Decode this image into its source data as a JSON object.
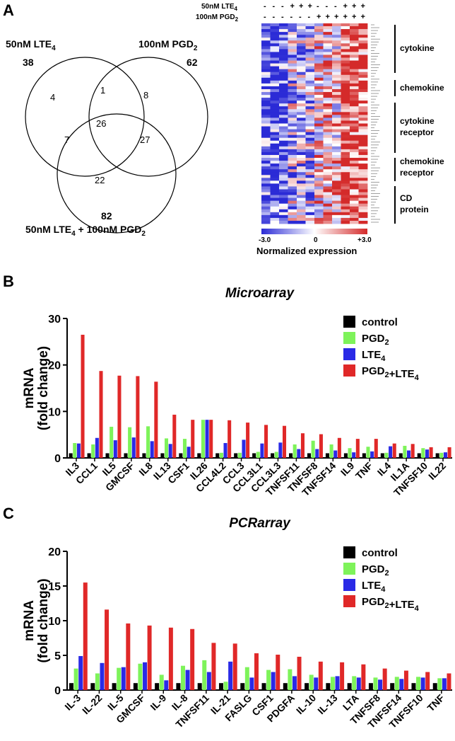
{
  "panels": {
    "a": "A",
    "b": "B",
    "c": "C"
  },
  "venn": {
    "set1_label": "50nM LTE",
    "set1_sub": "4",
    "set1_total": "38",
    "set2_label": "100nM PGD",
    "set2_sub": "2",
    "set2_total": "62",
    "set3_label_a": "50nM LTE",
    "set3_sub_a": "4",
    "set3_label_b": " + 100nM PGD",
    "set3_sub_b": "2",
    "set3_total": "82",
    "only1": "4",
    "only2": "8",
    "only3": "22",
    "s12": "1",
    "s13": "7",
    "s23": "27",
    "s123": "26"
  },
  "heatmap": {
    "row1_label": "50nM LTE",
    "row1_sub": "4",
    "row1_signs": [
      "-",
      "-",
      "-",
      "+",
      "+",
      "+",
      "-",
      "-",
      "-",
      "+",
      "+",
      "+"
    ],
    "row2_label": "100nM PGD",
    "row2_sub": "2",
    "row2_signs": [
      "-",
      "-",
      "-",
      "-",
      "-",
      "-",
      "+",
      "+",
      "+",
      "+",
      "+",
      "+"
    ],
    "groups": [
      "cytokine",
      "chemokine",
      "cytokine\nreceptor",
      "chemokine\nreceptor",
      "CD\nprotein"
    ],
    "scale_min": "-3.0",
    "scale_mid": "0",
    "scale_max": "+3.0",
    "scale_label": "Normalized expression",
    "colors": {
      "low": "#2b2bd6",
      "mid": "#ffffff",
      "high": "#d42a2a"
    }
  },
  "legend": [
    "control",
    "PGD2",
    "LTE4",
    "PGD2+LTE4"
  ],
  "series_colors": [
    "#000000",
    "#7ef35a",
    "#2a2ae6",
    "#e02828"
  ],
  "chart_data": [
    {
      "type": "bar",
      "title": "Microarray",
      "ylabel": "mRNA (fold change)",
      "ylim": [
        0,
        30
      ],
      "yticks": [
        0,
        10,
        20,
        30
      ],
      "categories": [
        "IL3",
        "CCL1",
        "IL5",
        "GMCSF",
        "IL8",
        "IL13",
        "CSF1",
        "IL26",
        "CCL4L2",
        "CCL3",
        "CCL3L1",
        "CCL3L3",
        "TNFSF11",
        "TNFSF8",
        "TNFSF14",
        "IL9",
        "TNF",
        "IL4",
        "IL1A",
        "TNFSF10",
        "IL22"
      ],
      "series": [
        {
          "name": "control",
          "values": [
            1,
            1,
            1,
            1,
            1,
            1,
            1,
            1,
            1,
            1,
            1,
            1,
            1,
            1,
            1,
            1,
            1,
            1,
            1,
            1,
            1
          ]
        },
        {
          "name": "PGD2",
          "values": [
            3.2,
            2.9,
            6.7,
            6.6,
            6.8,
            4.2,
            4.1,
            8.2,
            1.1,
            1.1,
            1.3,
            1.3,
            2.9,
            3.7,
            2.9,
            2.1,
            2.4,
            1.1,
            2.6,
            2.1,
            1.1
          ]
        },
        {
          "name": "LTE4",
          "values": [
            3.1,
            4.3,
            3.8,
            4.4,
            3.6,
            3.0,
            2.4,
            8.2,
            3.2,
            3.9,
            3.1,
            3.3,
            1.9,
            1.9,
            1.6,
            1.2,
            1.4,
            2.5,
            1.6,
            1.8,
            1.2
          ]
        },
        {
          "name": "PGD2+LTE4",
          "values": [
            26.5,
            18.7,
            17.7,
            17.6,
            16.4,
            9.3,
            8.2,
            8.2,
            8.1,
            7.6,
            7.1,
            6.9,
            5.3,
            5.1,
            4.3,
            4.1,
            4.1,
            3.1,
            3.0,
            2.3,
            2.3
          ]
        }
      ]
    },
    {
      "type": "bar",
      "title": "PCRarray",
      "ylabel": "mRNA (fold change)",
      "ylim": [
        0,
        20
      ],
      "yticks": [
        0,
        5,
        10,
        15,
        20
      ],
      "categories": [
        "IL-3",
        "IL-22",
        "IL-5",
        "GMCSF",
        "IL-9",
        "IL-8",
        "TNFSF11",
        "IL-21",
        "FASLG",
        "CSF1",
        "PDGFA",
        "IL-10",
        "IL-13",
        "LTA",
        "TNFSF8",
        "TNFSF14",
        "TNFSF10",
        "TNF"
      ],
      "series": [
        {
          "name": "control",
          "values": [
            1,
            1,
            1,
            1,
            1,
            1,
            1,
            1,
            1,
            1,
            1,
            1,
            1,
            1,
            1,
            1,
            1,
            1
          ]
        },
        {
          "name": "PGD2",
          "values": [
            3.1,
            2.4,
            3.2,
            3.8,
            2.2,
            3.5,
            4.3,
            1.2,
            3.3,
            2.9,
            3.0,
            2.2,
            1.9,
            2.0,
            1.8,
            1.9,
            1.9,
            1.7
          ]
        },
        {
          "name": "LTE4",
          "values": [
            4.9,
            3.9,
            3.3,
            4.0,
            1.4,
            2.9,
            2.6,
            4.1,
            1.8,
            2.6,
            2.0,
            1.8,
            2.0,
            1.8,
            1.5,
            1.6,
            1.8,
            1.7
          ]
        },
        {
          "name": "PGD2+LTE4",
          "values": [
            15.5,
            11.6,
            9.6,
            9.3,
            9.0,
            8.8,
            6.8,
            6.7,
            5.3,
            5.1,
            4.8,
            4.1,
            4.0,
            3.7,
            3.1,
            2.8,
            2.6,
            2.4
          ]
        }
      ]
    }
  ]
}
